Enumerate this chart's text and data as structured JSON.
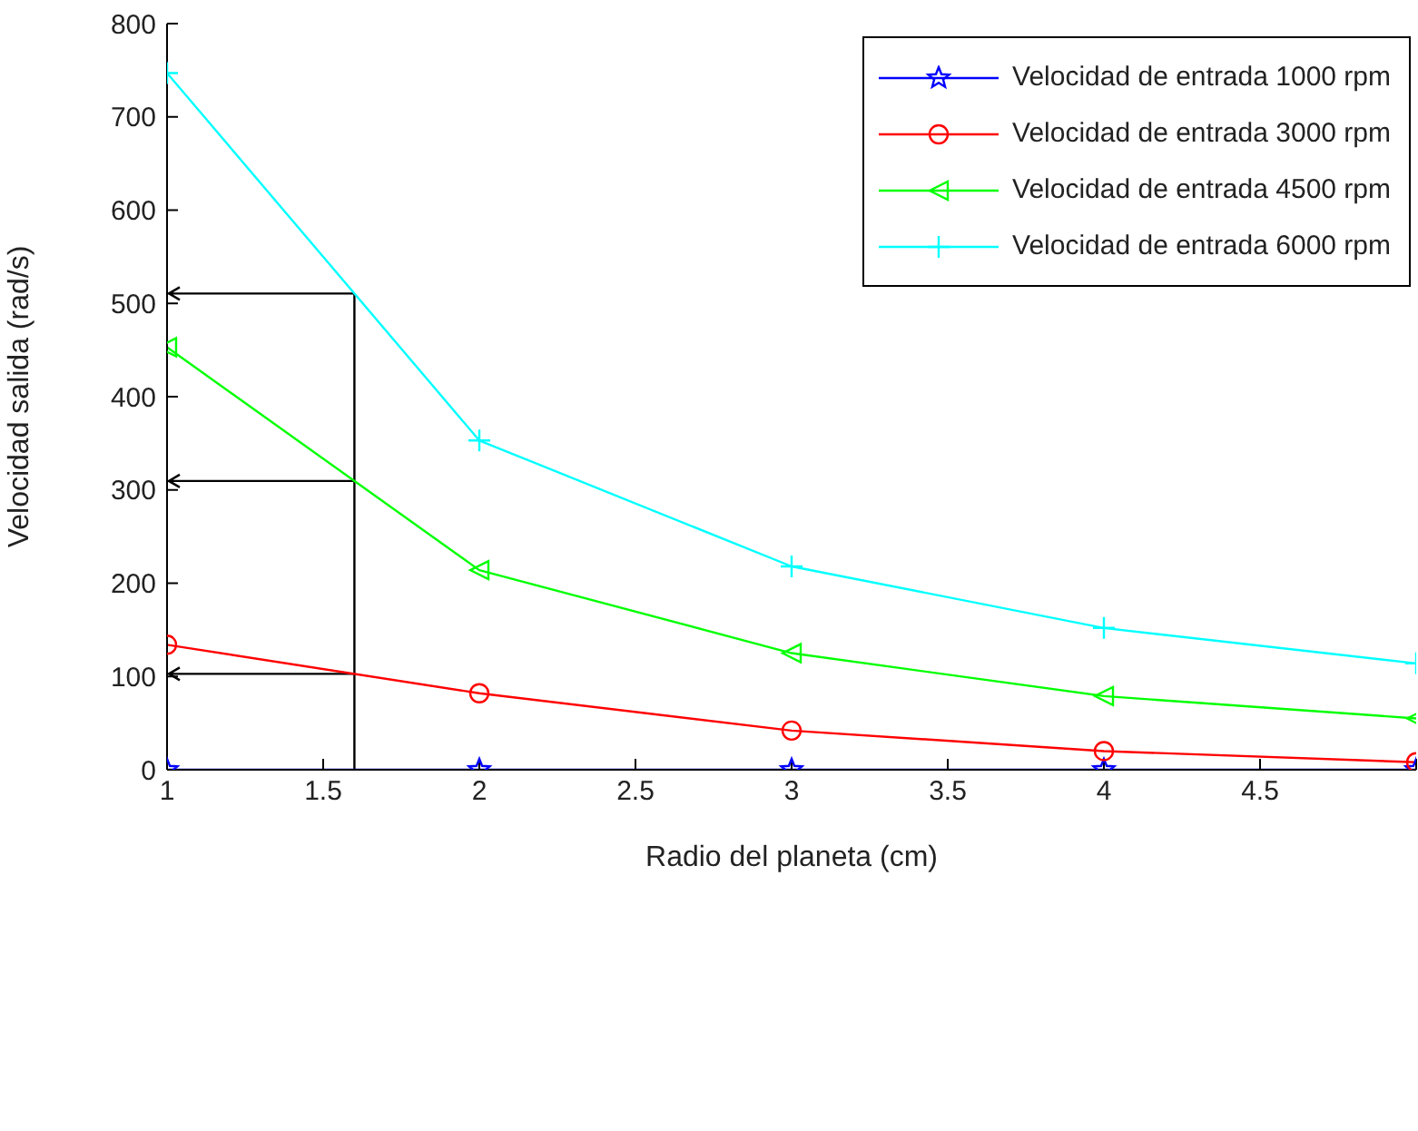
{
  "chart_data": {
    "type": "line",
    "xlabel": "Radio del planeta (cm)",
    "ylabel": "Velocidad salida (rad/s)",
    "x": [
      1,
      2,
      3,
      4,
      5
    ],
    "series": [
      {
        "name": "Velocidad de entrada 1000 rpm",
        "color": "#0000ff",
        "marker": "star",
        "values": [
          0,
          0,
          0,
          0,
          0
        ]
      },
      {
        "name": "Velocidad de entrada 3000 rpm",
        "color": "#ff0000",
        "marker": "circle",
        "values": [
          134,
          82,
          42,
          20,
          8
        ]
      },
      {
        "name": "Velocidad de entrada 4500 rpm",
        "color": "#00ff00",
        "marker": "triangle",
        "values": [
          453,
          214,
          125,
          79,
          55
        ]
      },
      {
        "name": "Velocidad de entrada 6000 rpm",
        "color": "#00ffff",
        "marker": "cross",
        "values": [
          747,
          353,
          218,
          152,
          114
        ]
      }
    ],
    "ref_lines": [
      {
        "axis": "x",
        "value": 1.6,
        "color": "#000000"
      }
    ],
    "xlim": [
      1,
      5
    ],
    "xticks": [
      1,
      1.5,
      2,
      2.5,
      3,
      3.5,
      4,
      4.5,
      {
        "value": 5,
        "label": null
      }
    ],
    "ylim": [
      0,
      800
    ],
    "yticks": [
      0,
      100,
      200,
      300,
      400,
      500,
      600,
      700,
      800
    ],
    "grid": false,
    "legend": "top right"
  }
}
